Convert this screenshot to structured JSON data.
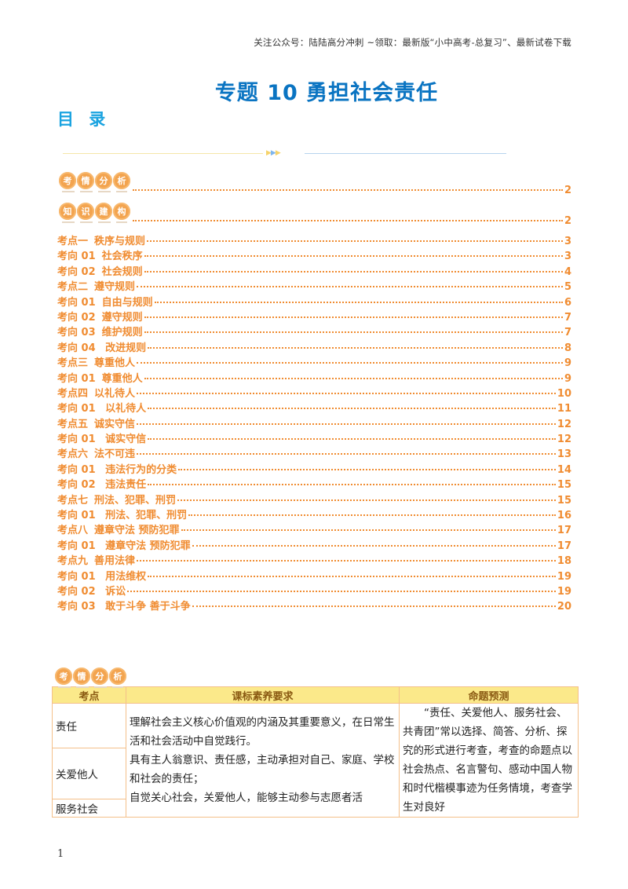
{
  "header_note": "关注公众号：陆陆高分冲刺  ~领取：最新版“小中高考-总复习”、最新试卷下载",
  "document": {
    "title": "专题 10  勇担社会责任",
    "toc_heading": "目 录"
  },
  "colors": {
    "title_blue": "#0a74c2",
    "toc_heading_cyan": "#1aa3e0",
    "toc_orange": "#f08c31",
    "badge_orange": "#f3a44f",
    "table_header_yellow": "#fbe98a",
    "table_border": "#f4c08a"
  },
  "toc": {
    "sections": [
      {
        "badge": [
          "考",
          "情",
          "分",
          "析"
        ],
        "page": "2"
      },
      {
        "badge": [
          "知",
          "识",
          "建",
          "构"
        ],
        "page": "2"
      }
    ],
    "entries": [
      {
        "code": "考点一",
        "title": "秩序与规则",
        "page": "3"
      },
      {
        "code": "考向 01",
        "title": "社会秩序",
        "page": "3"
      },
      {
        "code": "考向 02",
        "title": "社会规则",
        "page": "4"
      },
      {
        "code": "考点二",
        "title": "遵守规则",
        "page": "5"
      },
      {
        "code": "考向 01",
        "title": "自由与规则",
        "page": "6"
      },
      {
        "code": "考向 02",
        "title": "遵守规则",
        "page": "7"
      },
      {
        "code": "考向 03",
        "title": "维护规则",
        "page": "7"
      },
      {
        "code": "考向 04",
        "title": " 改进规则",
        "page": "8"
      },
      {
        "code": "考点三",
        "title": "尊重他人",
        "page": "9"
      },
      {
        "code": "考向 01",
        "title": "尊重他人",
        "page": "9"
      },
      {
        "code": "考点四",
        "title": "以礼待人",
        "page": "10"
      },
      {
        "code": "考向 01",
        "title": " 以礼待人",
        "page": "11"
      },
      {
        "code": "考点五",
        "title": "诚实守信",
        "page": "12"
      },
      {
        "code": "考向 01",
        "title": " 诚实守信",
        "page": "12"
      },
      {
        "code": "考点六",
        "title": "法不可违",
        "page": "13"
      },
      {
        "code": "考向 01",
        "title": " 违法行为的分类",
        "page": "14"
      },
      {
        "code": "考向 02",
        "title": " 违法责任",
        "page": "15"
      },
      {
        "code": "考点七",
        "title": "刑法、犯罪、刑罚",
        "page": "15"
      },
      {
        "code": "考向 01",
        "title": " 刑法、犯罪、刑罚",
        "page": "16"
      },
      {
        "code": "考点八",
        "title": "遵章守法 预防犯罪",
        "page": "17"
      },
      {
        "code": "考向 01",
        "title": " 遵章守法 预防犯罪",
        "page": "17"
      },
      {
        "code": "考点九",
        "title": "善用法律",
        "page": "18"
      },
      {
        "code": "考向 01",
        "title": " 用法维权",
        "page": "19"
      },
      {
        "code": "考向 02",
        "title": " 诉讼",
        "page": "19"
      },
      {
        "code": "考向 03",
        "title": " 敢于斗争 善于斗争",
        "page": "20"
      }
    ]
  },
  "analysis": {
    "badge": [
      "考",
      "情",
      "分",
      "析"
    ],
    "table": {
      "headers": [
        "考点",
        "课标素养要求",
        "命题预测"
      ],
      "points": [
        "责任",
        "关爱他人",
        "服务社会"
      ],
      "requirements": [
        "理解社会主义核心价值观的内涵及其重要意义，在日常生活和社会活动中自觉践行。",
        "具有主人翁意识、责任感，主动承担对自己、家庭、学校和社会的责任；",
        "自觉关心社会，关爱他人，能够主动参与志愿者活"
      ],
      "prediction": "“责任、关爱他人、服务社会、共青团”常以选择、简答、分析、探究的形式进行考查，考查的命题点以社会热点、名言警句、感动中国人物和时代楷模事迹为任务情境，考查学生对良好"
    }
  },
  "page_number": "1"
}
